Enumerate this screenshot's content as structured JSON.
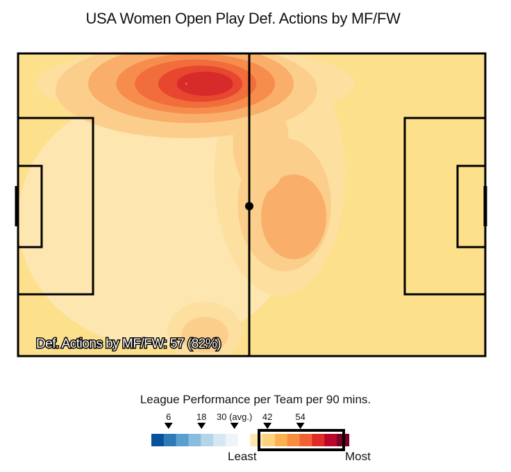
{
  "chart_data": {
    "type": "heatmap",
    "title": "USA Women Open Play Def. Actions by MF/FW",
    "annotation": "Def. Actions by MF/FW: 57 (82%)",
    "total_actions": 57,
    "share_percent": 82,
    "density_peaks": [
      {
        "x": 36,
        "y": 90,
        "level": 7,
        "label": "top-left-center hotspot"
      },
      {
        "x": 58,
        "y": 48,
        "level": 4,
        "label": "center-right zone"
      },
      {
        "x": 40,
        "y": 8,
        "level": 3,
        "label": "bottom-center zone"
      }
    ],
    "colors": {
      "heat_levels": [
        "#ffffff",
        "#fde6b0",
        "#fddfa0",
        "#fbcf8b",
        "#f9ae6a",
        "#f68d4d",
        "#f16d3c",
        "#e8472f",
        "#d72a2a"
      ],
      "pitch_background": "#fde08c",
      "pitch_lines": "#000000"
    },
    "legend": {
      "title": "League Performance per Team per 90 mins.",
      "ticks": [
        {
          "label": "6",
          "value": 6
        },
        {
          "label": "18",
          "value": 18
        },
        {
          "label": "30 (avg.)",
          "value": 30
        },
        {
          "label": "42",
          "value": 42
        },
        {
          "label": "54",
          "value": 54
        }
      ],
      "colors": [
        "#08519c",
        "#2f7ab9",
        "#5a9fcf",
        "#87bddf",
        "#b4d4e9",
        "#d6e6f3",
        "#eef4fa",
        "#ffffff",
        "#fde6b0",
        "#fdd27e",
        "#fbb04f",
        "#f88d3e",
        "#f26033",
        "#e02c26",
        "#b8062c",
        "#7a0024"
      ],
      "highlighted_range": "30-60",
      "least_label": "Least",
      "most_label": "Most"
    }
  }
}
